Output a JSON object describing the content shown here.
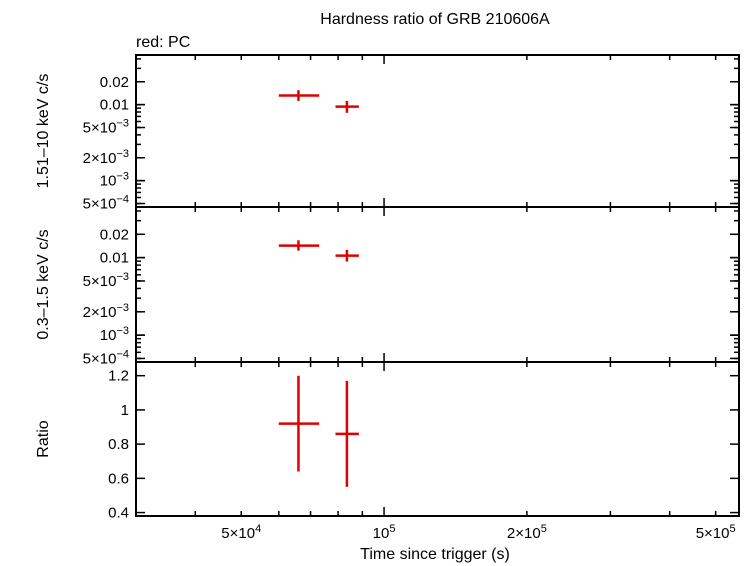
{
  "chart_data": {
    "type": "scatter",
    "title": "Hardness ratio of GRB 210606A",
    "legend": "red: PC",
    "series_color": "#e00000",
    "xlabel": "Time since trigger (s)",
    "x_scale": "log",
    "xlim": [
      30000,
      560000
    ],
    "x_ticks": [
      {
        "value": 50000,
        "mantissa": "5×10",
        "exp": "4"
      },
      {
        "value": 100000,
        "mantissa": "10",
        "exp": "5"
      },
      {
        "value": 200000,
        "mantissa": "2×10",
        "exp": "5"
      },
      {
        "value": 500000,
        "mantissa": "5×10",
        "exp": "5"
      }
    ],
    "panels": [
      {
        "name": "hard",
        "ylabel": "1.51–10 keV c/s",
        "y_scale": "log",
        "ylim": [
          0.00045,
          0.045
        ],
        "y_ticks": [
          {
            "value": 0.02,
            "mantissa": "0.02",
            "exp": ""
          },
          {
            "value": 0.01,
            "mantissa": "0.01",
            "exp": ""
          },
          {
            "value": 0.005,
            "mantissa": "5×10",
            "exp": "−3"
          },
          {
            "value": 0.002,
            "mantissa": "2×10",
            "exp": "−3"
          },
          {
            "value": 0.001,
            "mantissa": "10",
            "exp": "−3"
          },
          {
            "value": 0.0005,
            "mantissa": "5×10",
            "exp": "−4"
          }
        ],
        "points": [
          {
            "x": 66000,
            "xerr": [
              60000,
              73000
            ],
            "y": 0.0132,
            "yerr": [
              0.0112,
              0.0155
            ]
          },
          {
            "x": 83500,
            "xerr": [
              79000,
              88500
            ],
            "y": 0.0094,
            "yerr": [
              0.0078,
              0.0112
            ]
          }
        ]
      },
      {
        "name": "soft",
        "ylabel": "0.3–1.5 keV c/s",
        "y_scale": "log",
        "ylim": [
          0.00045,
          0.045
        ],
        "y_ticks": [
          {
            "value": 0.02,
            "mantissa": "0.02",
            "exp": ""
          },
          {
            "value": 0.01,
            "mantissa": "0.01",
            "exp": ""
          },
          {
            "value": 0.005,
            "mantissa": "5×10",
            "exp": "−3"
          },
          {
            "value": 0.002,
            "mantissa": "2×10",
            "exp": "−3"
          },
          {
            "value": 0.001,
            "mantissa": "10",
            "exp": "−3"
          },
          {
            "value": 0.0005,
            "mantissa": "5×10",
            "exp": "−4"
          }
        ],
        "points": [
          {
            "x": 66000,
            "xerr": [
              60000,
              73000
            ],
            "y": 0.0143,
            "yerr": [
              0.0123,
              0.0167
            ]
          },
          {
            "x": 83500,
            "xerr": [
              79000,
              88500
            ],
            "y": 0.0106,
            "yerr": [
              0.0089,
              0.0126
            ]
          }
        ]
      },
      {
        "name": "ratio",
        "ylabel": "Ratio",
        "y_scale": "linear",
        "ylim": [
          0.38,
          1.28
        ],
        "y_ticks": [
          {
            "value": 1.2,
            "mantissa": "1.2",
            "exp": ""
          },
          {
            "value": 1.0,
            "mantissa": "1",
            "exp": ""
          },
          {
            "value": 0.8,
            "mantissa": "0.8",
            "exp": ""
          },
          {
            "value": 0.6,
            "mantissa": "0.6",
            "exp": ""
          },
          {
            "value": 0.4,
            "mantissa": "0.4",
            "exp": ""
          }
        ],
        "points": [
          {
            "x": 66000,
            "xerr": [
              60000,
              73000
            ],
            "y": 0.92,
            "yerr": [
              0.64,
              1.2
            ]
          },
          {
            "x": 83500,
            "xerr": [
              79000,
              88500
            ],
            "y": 0.86,
            "yerr": [
              0.55,
              1.17
            ]
          }
        ]
      }
    ]
  }
}
